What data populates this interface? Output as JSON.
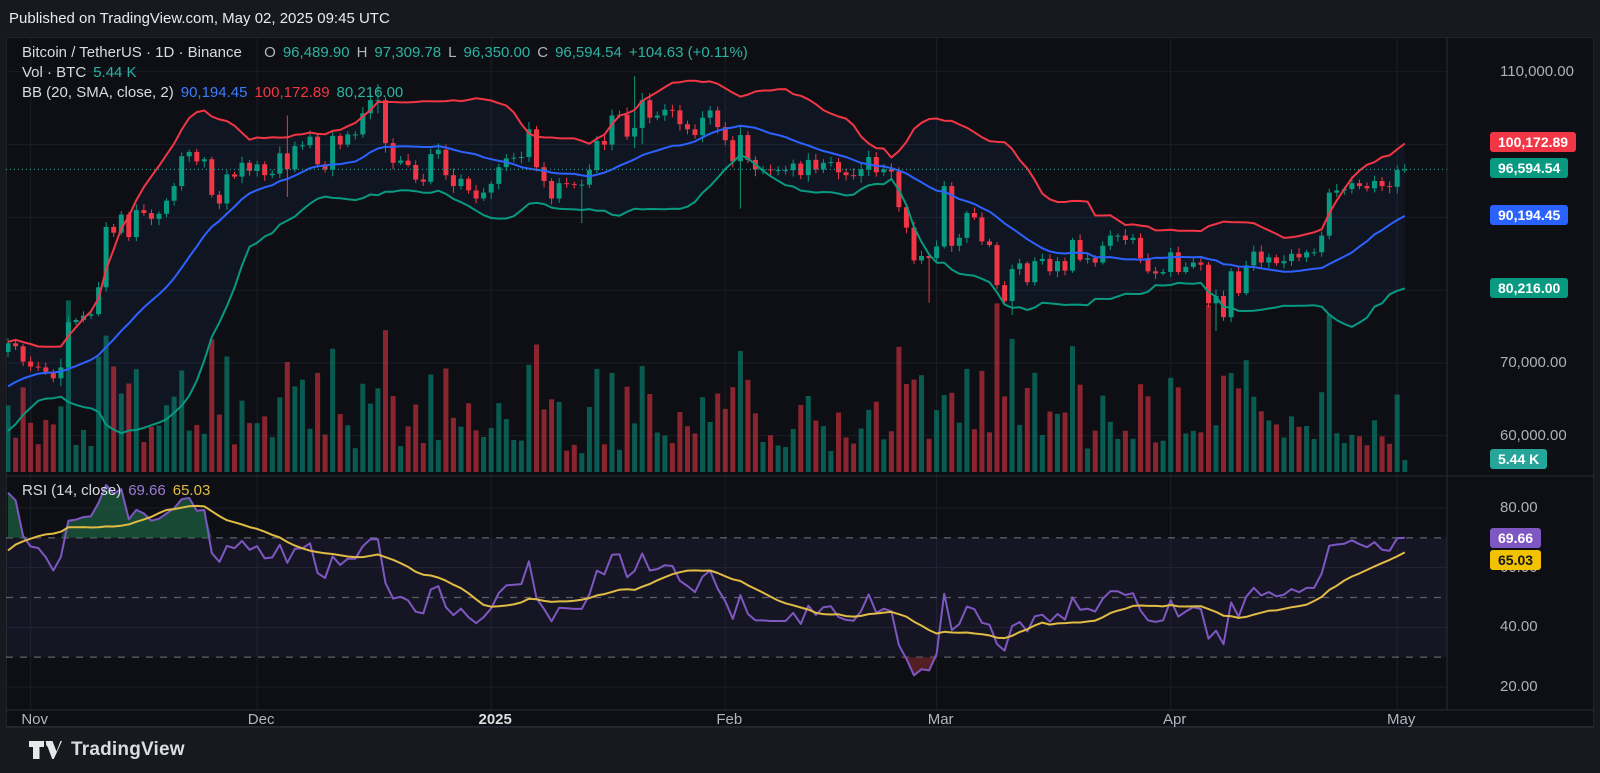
{
  "published": {
    "text": "Published on TradingView.com, May 02, 2025 09:45 UTC"
  },
  "footer": {
    "brand": "TradingView"
  },
  "legend": {
    "symbol": "Bitcoin / TetherUS · 1D · Binance",
    "o_label": "O",
    "o": "96,489.90",
    "h_label": "H",
    "h": "97,309.78",
    "l_label": "L",
    "l": "96,350.00",
    "c_label": "C",
    "c": "96,594.54",
    "change": "+104.63 (+0.11%)",
    "vol_label": "Vol · BTC",
    "vol_value": "5.44 K",
    "bb_label": "BB (20, SMA, close, 2)",
    "bb_basis": "90,194.45",
    "bb_upper": "100,172.89",
    "bb_lower": "80,216.00",
    "rsi_label": "RSI (14, close)",
    "rsi_value": "69.66",
    "rsi_ma_value": "65.03"
  },
  "axes": {
    "price_ticks": [
      {
        "label": "110,000.00",
        "value": 110000
      },
      {
        "label": "100,000.00",
        "value": 100000
      },
      {
        "label": "90,000.00",
        "value": 90000
      },
      {
        "label": "80,000.00",
        "value": 80000
      },
      {
        "label": "70,000.00",
        "value": 70000
      },
      {
        "label": "60,000.00",
        "value": 60000
      }
    ],
    "price_badges": [
      {
        "label": "100,172.89",
        "value": 100172.89,
        "bg": "#f23645",
        "fg": "#ffffff"
      },
      {
        "label": "96,594.54",
        "value": 96594.54,
        "bg": "#089981",
        "fg": "#ffffff"
      },
      {
        "label": "90,194.45",
        "value": 90194.45,
        "bg": "#2962ff",
        "fg": "#ffffff"
      },
      {
        "label": "80,216.00",
        "value": 80216.0,
        "bg": "#089981",
        "fg": "#ffffff"
      }
    ],
    "volume_badge": {
      "label": "5.44 K",
      "bg": "#26a69a",
      "fg": "#ffffff"
    },
    "rsi_ticks": [
      {
        "label": "80.00",
        "value": 80
      },
      {
        "label": "60.00",
        "value": 60
      },
      {
        "label": "40.00",
        "value": 40
      },
      {
        "label": "20.00",
        "value": 20
      }
    ],
    "rsi_badges": [
      {
        "label": "69.66",
        "value": 69.66,
        "bg": "#7e57c2",
        "fg": "#ffffff"
      },
      {
        "label": "65.03",
        "value": 65.03,
        "bg": "#f2c200",
        "fg": "#131722"
      }
    ],
    "time_ticks": [
      {
        "label": "Nov",
        "day": 3
      },
      {
        "label": "Dec",
        "day": 33
      },
      {
        "label": "2025",
        "day": 64,
        "bold": true
      },
      {
        "label": "Feb",
        "day": 95
      },
      {
        "label": "Mar",
        "day": 123
      },
      {
        "label": "Apr",
        "day": 154
      },
      {
        "label": "May",
        "day": 184
      }
    ]
  },
  "colors": {
    "up": "#089981",
    "down": "#f23645",
    "vol_up": "rgba(8,153,129,0.55)",
    "vol_down": "rgba(242,54,69,0.55)",
    "bb_upper": "#f23645",
    "bb_mid": "#2d62ff",
    "bb_lower": "#089981",
    "bb_fill": "rgba(60,110,220,0.07)",
    "close_line": "#2bb3a2",
    "rsi": "#7e57c2",
    "rsi_ma": "#e0bc45",
    "rsi_band_fill": "rgba(126,87,194,0.09)",
    "overbought_fill": "rgba(32,110,74,0.62)",
    "oversold_fill": "rgba(128,42,48,0.62)",
    "grid": "#1b1f27",
    "border": "#2a2e39",
    "dash": "rgba(178,181,190,0.45)"
  },
  "chart_data": {
    "type": "candlestick",
    "title": "Bitcoin / TetherUS",
    "exchange": "Binance",
    "interval": "1D",
    "start_date": "2024-10-29",
    "end_date": "2025-05-02",
    "price_axis_range": [
      54700,
      114800
    ],
    "rsi_axis_range": [
      12,
      90
    ],
    "grid": true,
    "last": {
      "open": 96489.9,
      "high": 97309.78,
      "low": 96350.0,
      "close": 96594.54,
      "change": 104.63,
      "change_pct": 0.11,
      "volume_btc_k": 5.44
    },
    "indicators": [
      {
        "name": "BB",
        "params": "20, SMA, close, 2",
        "basis": 90194.45,
        "upper": 100172.89,
        "lower": 80216.0
      },
      {
        "name": "Volume",
        "unit": "BTC",
        "current_k": 5.44
      },
      {
        "name": "RSI",
        "params": "14, close",
        "value": 69.66,
        "ma": 65.03,
        "bands": [
          70,
          50,
          30
        ]
      }
    ],
    "pre_closes": [
      60300,
      60600,
      62500,
      63100,
      66100,
      67400,
      67000,
      68400,
      67700,
      68000,
      68200,
      67400,
      66600,
      67000,
      66700,
      67000,
      68200,
      69400,
      71500
    ],
    "closes": [
      72700,
      72300,
      70200,
      69500,
      69400,
      68800,
      67900,
      69400,
      75600,
      75900,
      76500,
      76700,
      80400,
      88700,
      87900,
      90400,
      87300,
      91000,
      90600,
      89800,
      90500,
      92300,
      94300,
      98400,
      99000,
      97700,
      98000,
      93100,
      91900,
      95900,
      95600,
      97500,
      96400,
      97300,
      95800,
      96000,
      98800,
      96600,
      99800,
      99900,
      101100,
      97300,
      96600,
      101200,
      100000,
      101400,
      101400,
      104300,
      106100,
      106100,
      100200,
      97500,
      97800,
      97200,
      95200,
      94900,
      98700,
      99300,
      95800,
      94300,
      95300,
      93700,
      92600,
      93400,
      94600,
      96900,
      98100,
      98200,
      98300,
      102100,
      96900,
      95000,
      92600,
      94700,
      94600,
      94500,
      94500,
      96500,
      100500,
      100000,
      104000,
      104100,
      101100,
      102300,
      106100,
      103700,
      104000,
      104800,
      104700,
      102800,
      102100,
      101300,
      103700,
      104700,
      102400,
      100600,
      97700,
      101300,
      97900,
      96600,
      96600,
      96500,
      96500,
      96500,
      97400,
      95800,
      97900,
      96600,
      97500,
      97600,
      96200,
      95800,
      95700,
      96600,
      98300,
      96200,
      96600,
      96300,
      91400,
      88600,
      84100,
      84700,
      84400,
      86000,
      94300,
      86100,
      87200,
      90600,
      90000,
      86700,
      86200,
      80700,
      78500,
      82900,
      83700,
      81100,
      84000,
      84300,
      82600,
      84000,
      82700,
      86900,
      84200,
      84400,
      83800,
      86100,
      87500,
      87500,
      86900,
      87200,
      84400,
      82600,
      82300,
      82500,
      85200,
      82500,
      83200,
      83800,
      83500,
      78200,
      79200,
      76300,
      82600,
      79600,
      83400,
      85300,
      83800,
      84500,
      83700,
      84000,
      85000,
      84500,
      85200,
      85200,
      87500,
      93400,
      93700,
      93900,
      94700,
      94300,
      94000,
      95000,
      94300,
      94200,
      96500,
      96594.54
    ],
    "wick_overrides": {
      "7": [
        70600,
        66800
      ],
      "8": [
        76400,
        69000
      ],
      "37": [
        104000,
        92800
      ],
      "49": [
        108300,
        104300
      ],
      "50": [
        106500,
        98900
      ],
      "76": [
        95200,
        89200
      ],
      "83": [
        109400,
        99500
      ],
      "84": [
        107100,
        100100
      ],
      "97": [
        102500,
        91200
      ],
      "122": [
        85100,
        78300
      ],
      "133": [
        83500,
        76600
      ],
      "160": [
        80100,
        74400
      ]
    },
    "volume_k_overrides": {
      "8": 78,
      "13": 62,
      "14": 48,
      "37": 50,
      "39": 42,
      "49": 38,
      "97": 55,
      "119": 40,
      "120": 42,
      "121": 44,
      "124": 35,
      "125": 36,
      "162": 45,
      "163": 38,
      "185": 5.44
    }
  }
}
